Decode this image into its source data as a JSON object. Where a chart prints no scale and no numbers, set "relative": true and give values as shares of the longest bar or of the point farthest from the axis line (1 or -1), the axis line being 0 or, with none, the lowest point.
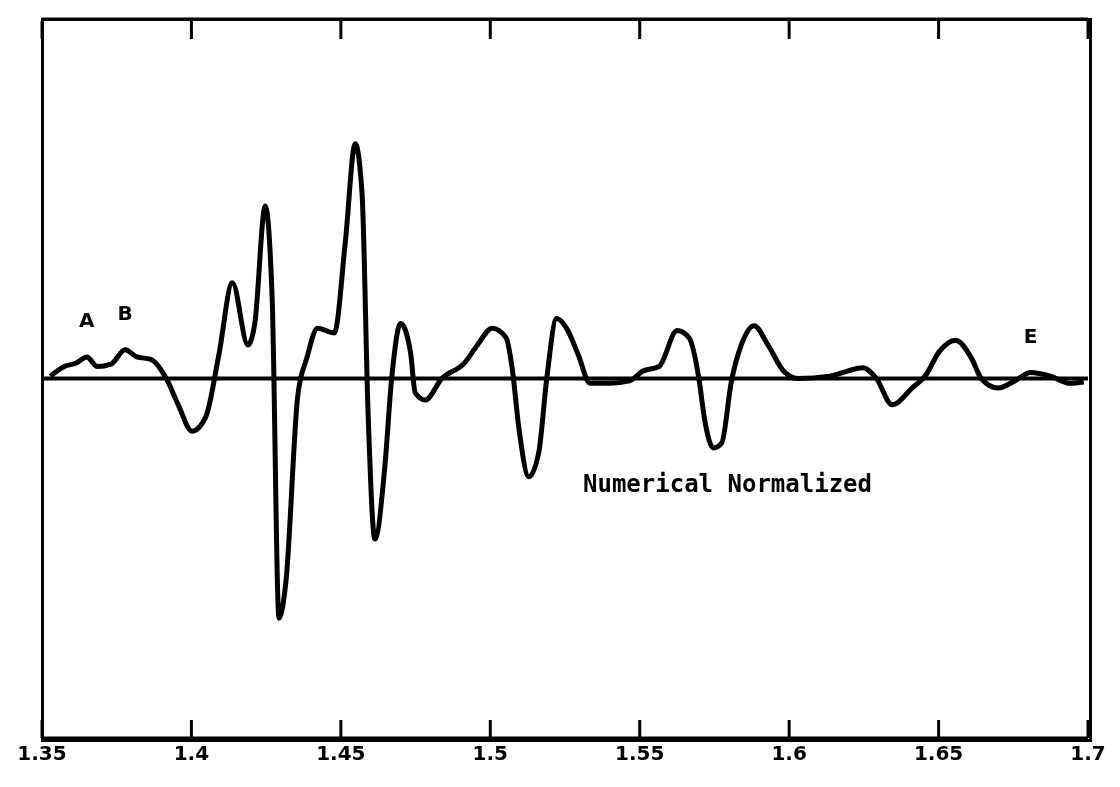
{
  "chart_data": {
    "type": "line",
    "relative": true,
    "xlim": [
      1.35,
      1.7
    ],
    "xticks": [
      1.35,
      1.4,
      1.45,
      1.5,
      1.55,
      1.6,
      1.65,
      1.7
    ],
    "series": [
      {
        "color": "#000000",
        "x": [
          1.3528,
          1.3575,
          1.3615,
          1.365,
          1.3685,
          1.3731,
          1.3778,
          1.3817,
          1.3864,
          1.3916,
          1.3956,
          1.4002,
          1.4048,
          1.4092,
          1.4137,
          1.4189,
          1.4212,
          1.4247,
          1.427,
          1.4293,
          1.4316,
          1.4356,
          1.4386,
          1.4422,
          1.4478,
          1.4515,
          1.4548,
          1.4571,
          1.4591,
          1.4614,
          1.4647,
          1.467,
          1.47,
          1.4733,
          1.4749,
          1.4782,
          1.4838,
          1.4914,
          1.4957,
          1.5007,
          1.5053,
          1.5073,
          1.5096,
          1.5129,
          1.5162,
          1.5189,
          1.5222,
          1.5255,
          1.5294,
          1.5334,
          1.54,
          1.5466,
          1.5509,
          1.5565,
          1.5625,
          1.5665,
          1.5698,
          1.5717,
          1.5747,
          1.5774,
          1.5807,
          1.584,
          1.5883,
          1.5929,
          1.5982,
          1.6028,
          1.6137,
          1.6193,
          1.6246,
          1.6292,
          1.6345,
          1.6411,
          1.6458,
          1.6501,
          1.6557,
          1.661,
          1.6643,
          1.6699,
          1.6755,
          1.6808,
          1.6874,
          1.694,
          1.6986
        ],
        "values": [
          0.01,
          0.05,
          0.065,
          0.09,
          0.05,
          0.06,
          0.12,
          0.09,
          0.08,
          0,
          -0.11,
          -0.22,
          -0.16,
          0.1,
          0.4,
          0.14,
          0.23,
          0.72,
          0.34,
          -1,
          -0.85,
          -0.07,
          0.085,
          0.21,
          0.19,
          0.57,
          0.98,
          0.77,
          -0.14,
          -0.67,
          -0.37,
          0,
          0.23,
          0.11,
          -0.06,
          -0.09,
          0,
          0.065,
          0.14,
          0.21,
          0.17,
          0.045,
          -0.21,
          -0.41,
          -0.31,
          0,
          0.25,
          0.21,
          0.1,
          -0.02,
          -0.02,
          -0.01,
          0.03,
          0.05,
          0.2,
          0.17,
          0,
          -0.17,
          -0.29,
          -0.27,
          -0.01,
          0.14,
          0.22,
          0.14,
          0.03,
          0,
          0.01,
          0.03,
          0.045,
          0,
          -0.11,
          -0.04,
          0.015,
          0.11,
          0.16,
          0.085,
          0,
          -0.04,
          -0.01,
          0.025,
          0.01,
          -0.02,
          -0.015
        ]
      }
    ],
    "annotations": [
      {
        "text": "A",
        "x": 1.365,
        "y": 0.09
      },
      {
        "text": "B",
        "x": 1.3778,
        "y": 0.12
      },
      {
        "text": "E",
        "x": 1.6808,
        "y": 0.025
      },
      "Numerical Normalized"
    ]
  }
}
